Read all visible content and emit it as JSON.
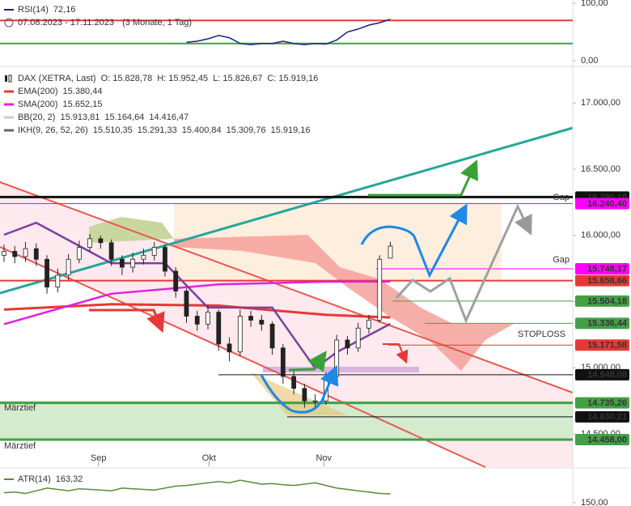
{
  "chart_data": [
    {
      "type": "line",
      "period": "07.08.2023 - 17.11.2023",
      "interval": "(3 Monate, 1 Tag)",
      "xlim": [
        0,
        53
      ],
      "ylim": [
        0,
        100
      ],
      "yticks": [
        {
          "value": 0,
          "label": "0,00"
        },
        {
          "value": 100,
          "label": "100,00"
        }
      ],
      "levels": [
        {
          "value": 70,
          "color": "#e53935"
        },
        {
          "value": 30,
          "color": "#43a047"
        }
      ],
      "series": [
        {
          "name": "RSI(14)",
          "color": "#1a237e",
          "legend_value": "72,16",
          "x": [
            17,
            18,
            19,
            20,
            21,
            22,
            23,
            24,
            25,
            26,
            27,
            28,
            29,
            30,
            31,
            32,
            33,
            34,
            35,
            36
          ],
          "values": [
            32,
            34,
            38,
            44,
            40,
            30,
            28,
            30,
            30,
            34,
            30,
            28,
            30,
            29,
            36,
            50,
            55,
            62,
            66,
            72.16
          ]
        }
      ]
    },
    {
      "type": "candlestick",
      "title": "DAX (XETRA, Last)",
      "ohlc_labels": [
        "O: 15.828,78",
        "H: 15.952,45",
        "L: 15.826,67",
        "C: 15.919,16"
      ],
      "xlim": [
        0,
        53
      ],
      "ylim": [
        14250,
        17240
      ],
      "xticks": [
        {
          "value": 8.8,
          "label": "Sep"
        },
        {
          "value": 19.1,
          "label": "Okt"
        },
        {
          "value": 29.8,
          "label": "Nov"
        }
      ],
      "yticks": [
        {
          "value": 14500,
          "label": "14.500,00"
        },
        {
          "value": 15000,
          "label": "15.000,00"
        },
        {
          "value": 15500,
          "label": "15.500,00"
        },
        {
          "value": 16000,
          "label": "16.000,00"
        },
        {
          "value": 16500,
          "label": "16.500,00"
        },
        {
          "value": 17000,
          "label": "17.000,00"
        }
      ],
      "x": [
        0,
        1,
        2,
        3,
        4,
        5,
        6,
        7,
        8,
        9,
        10,
        11,
        12,
        13,
        14,
        15,
        16,
        17,
        18,
        19,
        20,
        21,
        22,
        23,
        24,
        25,
        26,
        27,
        28,
        29,
        30,
        31,
        32,
        33,
        34,
        35,
        36
      ],
      "open": [
        15850,
        15880,
        15840,
        15900,
        15820,
        15610,
        15700,
        15820,
        15910,
        15975,
        15945,
        15820,
        15760,
        15820,
        15850,
        15910,
        15730,
        15580,
        15390,
        15330,
        15420,
        15180,
        15120,
        15390,
        15360,
        15330,
        15150,
        14935,
        14845,
        14750,
        14750,
        14935,
        15210,
        15150,
        15300,
        15360,
        15828.78
      ],
      "high": [
        15930,
        15920,
        15950,
        15940,
        15850,
        15750,
        15860,
        15960,
        16010,
        16000,
        15970,
        15850,
        15870,
        15900,
        15950,
        15930,
        15760,
        15600,
        15430,
        15470,
        15440,
        15230,
        15440,
        15430,
        15400,
        15350,
        15180,
        14980,
        14880,
        14800,
        14970,
        15250,
        15240,
        15340,
        15400,
        15850,
        15952.45
      ],
      "low": [
        15800,
        15790,
        15800,
        15770,
        15560,
        15570,
        15660,
        15790,
        15880,
        15900,
        15770,
        15700,
        15720,
        15780,
        15810,
        15690,
        15530,
        15340,
        15280,
        15290,
        15130,
        15050,
        15090,
        15310,
        15280,
        15100,
        14880,
        14800,
        14700,
        14690,
        14720,
        14910,
        15100,
        15120,
        15260,
        15340,
        15826.67
      ],
      "close": [
        15880,
        15840,
        15900,
        15820,
        15610,
        15700,
        15820,
        15910,
        15975,
        15945,
        15820,
        15760,
        15820,
        15850,
        15910,
        15730,
        15580,
        15390,
        15330,
        15420,
        15180,
        15120,
        15390,
        15360,
        15330,
        15150,
        14935,
        14845,
        14750,
        14750,
        14935,
        15210,
        15150,
        15300,
        15360,
        15820,
        15919.16
      ],
      "legend": [
        {
          "name": "EMA(200)",
          "color": "#e53935",
          "legend_values": [
            {
              "text": "15.380,44",
              "color": "#e53935"
            }
          ],
          "x": [
            0,
            10,
            20,
            30,
            36
          ],
          "values": [
            15440,
            15480,
            15470,
            15400,
            15380.44
          ]
        },
        {
          "name": "SMA(200)",
          "color": "#e020e0",
          "legend_values": [
            {
              "text": "15.652,15",
              "color": "#e020e0"
            }
          ],
          "x": [
            0,
            10,
            20,
            30,
            36
          ],
          "values": [
            15330,
            15560,
            15630,
            15650,
            15652.15
          ]
        },
        {
          "name": "BB(20, 2)",
          "color": "#cccccc",
          "faded": true,
          "legend_values": [
            {
              "text": "15.913,81",
              "color": "#cccccc"
            },
            {
              "text": "15.164,64",
              "color": "#cccccc"
            },
            {
              "text": "14.416,47",
              "color": "#cccccc"
            }
          ]
        },
        {
          "name": "IKH(9, 26, 52, 26)",
          "color": "#666666",
          "line_color": "#7e3fa0",
          "legend_values": [
            {
              "text": "15.510,35",
              "color": "#666666"
            },
            {
              "text": "15.291,33",
              "color": "#7e3fa0"
            },
            {
              "text": "15.400,84",
              "color": "#1e9ad6"
            },
            {
              "text": "15.309,76",
              "color": "#666666"
            },
            {
              "text": "15.919,16",
              "color": "#9c5fb5"
            }
          ],
          "x": [
            0,
            3,
            10,
            15,
            19,
            25,
            29,
            31,
            36
          ],
          "values": [
            16005,
            16096,
            15790,
            15790,
            15455,
            15455,
            14996,
            15118,
            15332
          ]
        }
      ],
      "levels": [
        {
          "value": 16290.1,
          "label": "16.290,10",
          "color": "#111111",
          "text_color": "#ffffff"
        },
        {
          "value": 16240.4,
          "label": "16.240,40",
          "color": "#ff00ff",
          "text_color": "#222222"
        },
        {
          "value": 15748.17,
          "label": "15.748,17",
          "color": "#ff00ff",
          "text_color": "#222222"
        },
        {
          "value": 15658.66,
          "label": "15.658,66",
          "color": "#e53935",
          "text_color": "#ffffff"
        },
        {
          "value": 15504.18,
          "label": "15.504,18",
          "color": "#43a047",
          "text_color": "#ffffff"
        },
        {
          "value": 15336.44,
          "label": "15.336,44",
          "color": "#43a047",
          "text_color": "#222222"
        },
        {
          "value": 15171.58,
          "label": "15.171,58",
          "color": "#e53935",
          "text_color": "#ffffff"
        },
        {
          "value": 14948.08,
          "label": "14.948,08",
          "color": "#111111",
          "text_color": "#ffffff"
        },
        {
          "value": 14735.26,
          "label": "14.735,26",
          "color": "#43a047",
          "text_color": "#ffffff"
        },
        {
          "value": 14630.21,
          "label": "14.630,21",
          "color": "#111111",
          "text_color": "#ffffff"
        },
        {
          "value": 14458.0,
          "label": "14.458,00",
          "color": "#43a047",
          "text_color": "#ffffff"
        }
      ],
      "annotations": [
        "Gap",
        "Gap",
        "STOPLOSS",
        "Märztief",
        "Märztief"
      ]
    },
    {
      "type": "line",
      "xlim": [
        0,
        53
      ],
      "ylim": [
        145,
        200
      ],
      "yticks": [
        {
          "value": 150,
          "label": "150,00"
        }
      ],
      "series": [
        {
          "name": "ATR(14)",
          "color": "#5a8a3c",
          "legend_value": "163,32",
          "x": [
            0,
            1,
            2,
            3,
            4,
            5,
            6,
            7,
            8,
            9,
            10,
            11,
            12,
            13,
            14,
            15,
            16,
            17,
            18,
            19,
            20,
            21,
            22,
            23,
            24,
            25,
            26,
            27,
            28,
            29,
            30,
            31,
            32,
            33,
            34,
            35,
            36
          ],
          "values": [
            165,
            166,
            164,
            168,
            172,
            170,
            168,
            171,
            170,
            169,
            168,
            172,
            171,
            170,
            169,
            172,
            175,
            176,
            178,
            180,
            182,
            180,
            184,
            181,
            178,
            179,
            177,
            176,
            178,
            180,
            176,
            172,
            170,
            168,
            166,
            164,
            163.32
          ]
        }
      ]
    }
  ]
}
